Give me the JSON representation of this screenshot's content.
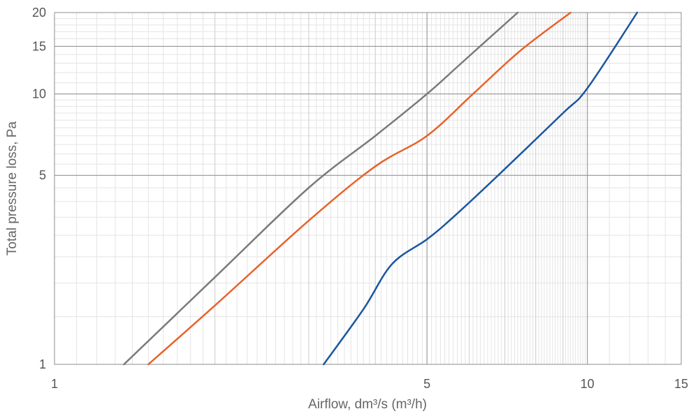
{
  "chart_data": {
    "type": "line",
    "title": "",
    "xlabel": "Airflow, dm³/s (m³/h)",
    "ylabel": "Total pressure loss, Pa",
    "xscale": "log",
    "yscale": "log",
    "xlim": [
      1,
      15
    ],
    "ylim": [
      1,
      20
    ],
    "xticks": [
      1,
      5,
      10,
      15
    ],
    "xtick_labels": [
      "1",
      "5",
      "10",
      "15"
    ],
    "yticks": [
      1,
      5,
      10,
      15,
      20
    ],
    "ytick_labels": [
      "1",
      "5",
      "10",
      "15",
      "20"
    ],
    "grid": true,
    "legend": "none",
    "series": [
      {
        "color": "#7a7a7a",
        "points": [
          [
            1.35,
            1
          ],
          [
            2.0,
            2.1
          ],
          [
            3.0,
            4.5
          ],
          [
            4.0,
            7.0
          ],
          [
            5.0,
            10.0
          ],
          [
            5.8,
            13.0
          ],
          [
            7.4,
            20.0
          ]
        ]
      },
      {
        "color": "#e8622a",
        "points": [
          [
            1.5,
            1
          ],
          [
            2.0,
            1.65
          ],
          [
            3.0,
            3.4
          ],
          [
            4.0,
            5.4
          ],
          [
            5.0,
            7.0
          ],
          [
            6.1,
            10.0
          ],
          [
            7.5,
            14.5
          ],
          [
            9.3,
            20.0
          ]
        ]
      },
      {
        "color": "#1a56a0",
        "points": [
          [
            3.2,
            1
          ],
          [
            3.8,
            1.6
          ],
          [
            4.3,
            2.35
          ],
          [
            5.0,
            2.9
          ],
          [
            5.6,
            3.5
          ],
          [
            6.8,
            5.0
          ],
          [
            9.0,
            8.5
          ],
          [
            10.0,
            10.5
          ],
          [
            12.4,
            20.0
          ]
        ]
      }
    ]
  }
}
